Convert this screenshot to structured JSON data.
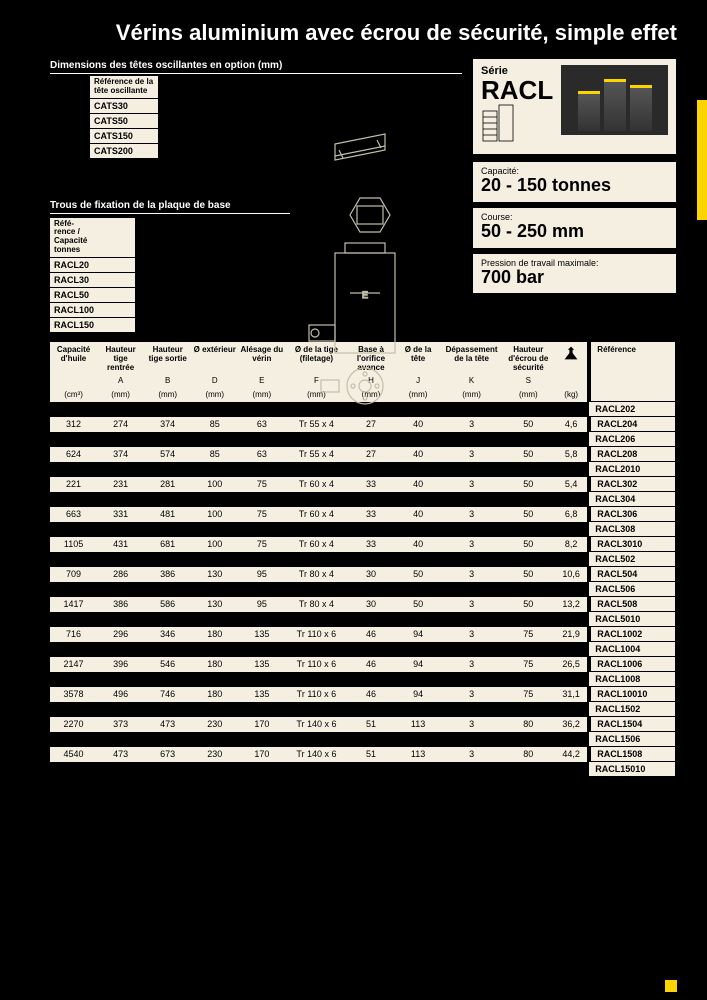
{
  "title": "Vérins aluminium avec écrou de sécurité, simple effet",
  "tilting_heads": {
    "header": "Dimensions des têtes oscillantes en option (mm)",
    "col_label": "Référence de la tête oscillante",
    "items": [
      "CATS30",
      "CATS50",
      "CATS150",
      "CATS200"
    ]
  },
  "base_plate": {
    "header": "Trous de fixation de la plaque de base",
    "col_label": "Réfé-\nrence /\nCapacité\ntonnes",
    "items": [
      "RACL20",
      "RACL30",
      "RACL50",
      "RACL100",
      "RACL150"
    ]
  },
  "serie": {
    "label": "Série",
    "name": "RACL"
  },
  "specs": [
    {
      "label": "Capacité:",
      "value": "20 - 150 tonnes"
    },
    {
      "label": "Course:",
      "value": "50  -  250 mm"
    },
    {
      "label": "Pression de travail maximale:",
      "value": "700 bar"
    }
  ],
  "table": {
    "headers": [
      {
        "t": "Capacité d'huile",
        "s": "",
        "u": "(cm³)"
      },
      {
        "t": "Hauteur tige rentrée",
        "s": "A",
        "u": "(mm)"
      },
      {
        "t": "Hauteur tige sortie",
        "s": "B",
        "u": "(mm)"
      },
      {
        "t": "Ø extérieur",
        "s": "D",
        "u": "(mm)"
      },
      {
        "t": "Alésage du vérin",
        "s": "E",
        "u": "(mm)"
      },
      {
        "t": "Ø de la tige (filetage)",
        "s": "F",
        "u": "(mm)"
      },
      {
        "t": "Base à l'orifice avance",
        "s": "H",
        "u": "(mm)"
      },
      {
        "t": "Ø de la tête",
        "s": "J",
        "u": "(mm)"
      },
      {
        "t": "Dépassement de la  tête",
        "s": "K",
        "u": "(mm)"
      },
      {
        "t": "Hauteur d'écrou de sécurité",
        "s": "S",
        "u": "(mm)"
      },
      {
        "t": "",
        "s": "",
        "u": "(kg)",
        "icon": true
      },
      {
        "t": "Référence",
        "s": "",
        "u": ""
      }
    ],
    "rows": [
      {
        "ref": "RACL202",
        "blank": true
      },
      {
        "c": [
          "312",
          "274",
          "374",
          "85",
          "63",
          "Tr 55 x 4",
          "27",
          "40",
          "3",
          "50",
          "4,6"
        ],
        "ref": "RACL204"
      },
      {
        "ref": "RACL206",
        "blank": true
      },
      {
        "c": [
          "624",
          "374",
          "574",
          "85",
          "63",
          "Tr 55 x 4",
          "27",
          "40",
          "3",
          "50",
          "5,8"
        ],
        "ref": "RACL208"
      },
      {
        "ref": "RACL2010",
        "blank": true
      },
      {
        "c": [
          "221",
          "231",
          "281",
          "100",
          "75",
          "Tr 60 x 4",
          "33",
          "40",
          "3",
          "50",
          "5,4"
        ],
        "ref": "RACL302"
      },
      {
        "ref": "RACL304",
        "blank": true
      },
      {
        "c": [
          "663",
          "331",
          "481",
          "100",
          "75",
          "Tr 60 x 4",
          "33",
          "40",
          "3",
          "50",
          "6,8"
        ],
        "ref": "RACL306"
      },
      {
        "ref": "RACL308",
        "blank": true
      },
      {
        "c": [
          "1105",
          "431",
          "681",
          "100",
          "75",
          "Tr 60 x 4",
          "33",
          "40",
          "3",
          "50",
          "8,2"
        ],
        "ref": "RACL3010"
      },
      {
        "ref": "RACL502",
        "blank": true
      },
      {
        "c": [
          "709",
          "286",
          "386",
          "130",
          "95",
          "Tr 80 x 4",
          "30",
          "50",
          "3",
          "50",
          "10,6"
        ],
        "ref": "RACL504"
      },
      {
        "ref": "RACL506",
        "blank": true
      },
      {
        "c": [
          "1417",
          "386",
          "586",
          "130",
          "95",
          "Tr 80 x 4",
          "30",
          "50",
          "3",
          "50",
          "13,2"
        ],
        "ref": "RACL508"
      },
      {
        "ref": "RACL5010",
        "blank": true
      },
      {
        "c": [
          "716",
          "296",
          "346",
          "180",
          "135",
          "Tr 110 x 6",
          "46",
          "94",
          "3",
          "75",
          "21,9"
        ],
        "ref": "RACL1002"
      },
      {
        "ref": "RACL1004",
        "blank": true
      },
      {
        "c": [
          "2147",
          "396",
          "546",
          "180",
          "135",
          "Tr 110 x 6",
          "46",
          "94",
          "3",
          "75",
          "26,5"
        ],
        "ref": "RACL1006"
      },
      {
        "ref": "RACL1008",
        "blank": true
      },
      {
        "c": [
          "3578",
          "496",
          "746",
          "180",
          "135",
          "Tr 110 x 6",
          "46",
          "94",
          "3",
          "75",
          "31,1"
        ],
        "ref": "RACL10010"
      },
      {
        "ref": "RACL1502",
        "blank": true
      },
      {
        "c": [
          "2270",
          "373",
          "473",
          "230",
          "170",
          "Tr 140 x 6",
          "51",
          "113",
          "3",
          "80",
          "36,2"
        ],
        "ref": "RACL1504"
      },
      {
        "ref": "RACL1506",
        "blank": true
      },
      {
        "c": [
          "4540",
          "473",
          "673",
          "230",
          "170",
          "Tr 140 x 6",
          "51",
          "113",
          "3",
          "80",
          "44,2"
        ],
        "ref": "RACL1508"
      },
      {
        "ref": "RACL15010",
        "blank": true
      }
    ]
  }
}
